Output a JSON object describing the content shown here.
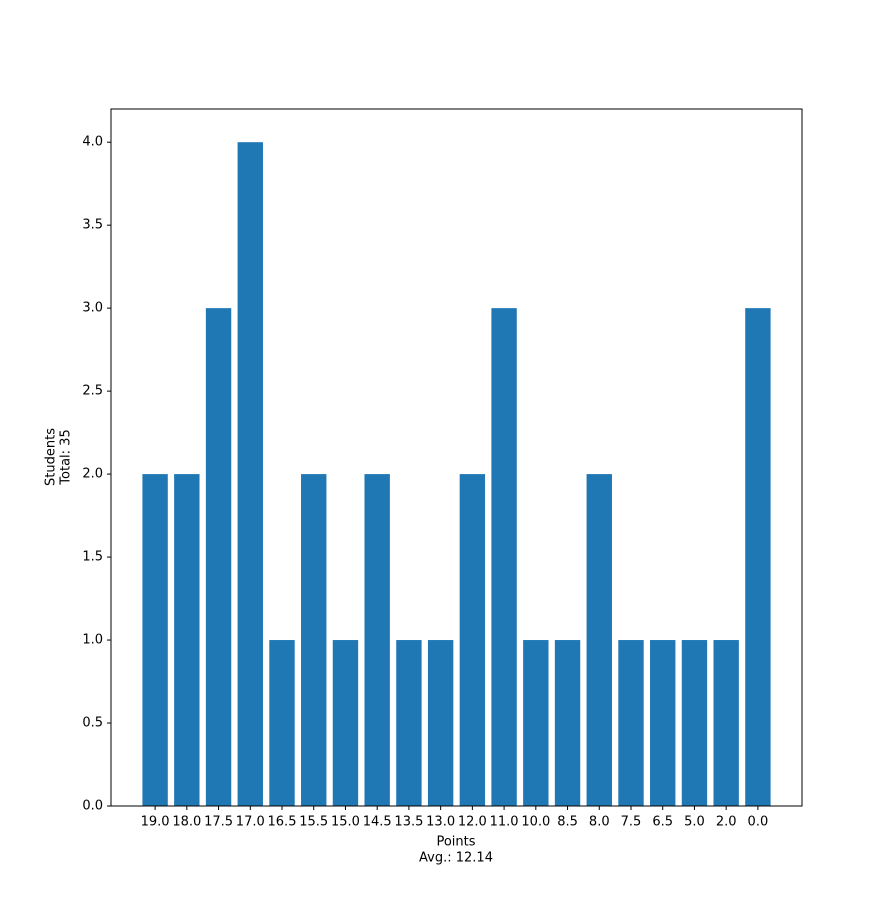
{
  "chart_data": {
    "type": "bar",
    "xlabel": [
      "Points",
      "Avg.: 12.14"
    ],
    "ylabel": [
      "Students",
      "Total: 35"
    ],
    "categories": [
      "19.0",
      "18.0",
      "17.5",
      "17.0",
      "16.5",
      "15.5",
      "15.0",
      "14.5",
      "13.5",
      "13.0",
      "12.0",
      "11.0",
      "10.0",
      "8.5",
      "8.0",
      "7.5",
      "6.5",
      "5.0",
      "2.0",
      "0.0"
    ],
    "values": [
      2,
      2,
      3,
      4,
      1,
      2,
      1,
      2,
      1,
      1,
      2,
      3,
      1,
      1,
      2,
      1,
      1,
      1,
      1,
      3
    ],
    "color": "#1f77b4",
    "ylim": [
      0,
      4.2
    ],
    "yticks": [
      {
        "value": 0,
        "label": "0.0"
      },
      {
        "value": 0.5,
        "label": "0.5"
      },
      {
        "value": 1,
        "label": "1.0"
      },
      {
        "value": 1.5,
        "label": "1.5"
      },
      {
        "value": 2,
        "label": "2.0"
      },
      {
        "value": 2.5,
        "label": "2.5"
      },
      {
        "value": 3,
        "label": "3.0"
      },
      {
        "value": 3.5,
        "label": "3.5"
      },
      {
        "value": 4,
        "label": "4.0"
      }
    ],
    "grid": false
  }
}
